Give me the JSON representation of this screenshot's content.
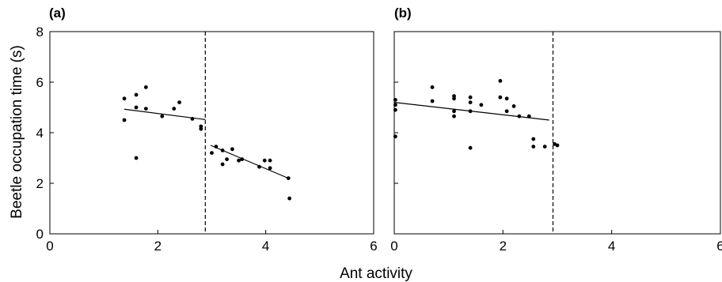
{
  "figure": {
    "shared_xlabel": "Ant activity",
    "shared_ylabel": "Beetle occupation time (s)"
  },
  "chart_data": [
    {
      "type": "scatter",
      "panel_label": "(a)",
      "xlim": [
        0,
        6
      ],
      "ylim": [
        0,
        8
      ],
      "xticks": [
        0,
        2,
        4,
        6
      ],
      "yticks": [
        0,
        2,
        4,
        6,
        8
      ],
      "show_y_tick_labels": true,
      "grid": false,
      "threshold_x": 2.88,
      "points": [
        {
          "x": 1.38,
          "y": 5.35
        },
        {
          "x": 1.38,
          "y": 4.5
        },
        {
          "x": 1.6,
          "y": 5.5
        },
        {
          "x": 1.6,
          "y": 5.0
        },
        {
          "x": 1.6,
          "y": 3.0
        },
        {
          "x": 1.78,
          "y": 5.8
        },
        {
          "x": 1.78,
          "y": 4.95
        },
        {
          "x": 2.08,
          "y": 4.65
        },
        {
          "x": 2.3,
          "y": 4.95
        },
        {
          "x": 2.4,
          "y": 5.2
        },
        {
          "x": 2.64,
          "y": 4.55
        },
        {
          "x": 2.8,
          "y": 4.25
        },
        {
          "x": 2.8,
          "y": 4.15
        },
        {
          "x": 3.0,
          "y": 3.2
        },
        {
          "x": 3.08,
          "y": 3.45
        },
        {
          "x": 3.2,
          "y": 3.3
        },
        {
          "x": 3.2,
          "y": 2.75
        },
        {
          "x": 3.28,
          "y": 2.95
        },
        {
          "x": 3.38,
          "y": 3.35
        },
        {
          "x": 3.5,
          "y": 2.9
        },
        {
          "x": 3.56,
          "y": 2.95
        },
        {
          "x": 3.88,
          "y": 2.65
        },
        {
          "x": 3.98,
          "y": 2.9
        },
        {
          "x": 4.08,
          "y": 2.6
        },
        {
          "x": 4.08,
          "y": 2.9
        },
        {
          "x": 4.42,
          "y": 2.2
        },
        {
          "x": 4.44,
          "y": 1.4
        }
      ],
      "fit_lines": [
        {
          "x": [
            1.38,
            2.88
          ],
          "y": [
            4.93,
            4.52
          ]
        },
        {
          "x": [
            2.98,
            4.44
          ],
          "y": [
            3.5,
            2.18
          ]
        }
      ]
    },
    {
      "type": "scatter",
      "panel_label": "(b)",
      "xlim": [
        0,
        6
      ],
      "ylim": [
        0,
        8
      ],
      "xticks": [
        0,
        2,
        4,
        6
      ],
      "yticks": [
        0,
        2,
        4,
        6,
        8
      ],
      "show_y_tick_labels": false,
      "grid": false,
      "threshold_x": 2.92,
      "points": [
        {
          "x": 0.02,
          "y": 5.3
        },
        {
          "x": 0.02,
          "y": 5.1
        },
        {
          "x": 0.02,
          "y": 4.9
        },
        {
          "x": 0.02,
          "y": 3.85
        },
        {
          "x": 0.7,
          "y": 5.8
        },
        {
          "x": 0.7,
          "y": 5.25
        },
        {
          "x": 1.1,
          "y": 5.45
        },
        {
          "x": 1.1,
          "y": 5.35
        },
        {
          "x": 1.1,
          "y": 4.85
        },
        {
          "x": 1.1,
          "y": 4.65
        },
        {
          "x": 1.4,
          "y": 5.4
        },
        {
          "x": 1.4,
          "y": 5.2
        },
        {
          "x": 1.4,
          "y": 4.85
        },
        {
          "x": 1.4,
          "y": 3.4
        },
        {
          "x": 1.6,
          "y": 5.1
        },
        {
          "x": 1.95,
          "y": 6.05
        },
        {
          "x": 1.95,
          "y": 5.4
        },
        {
          "x": 2.07,
          "y": 5.35
        },
        {
          "x": 2.07,
          "y": 4.85
        },
        {
          "x": 2.2,
          "y": 5.05
        },
        {
          "x": 2.3,
          "y": 4.65
        },
        {
          "x": 2.48,
          "y": 4.65
        },
        {
          "x": 2.56,
          "y": 3.75
        },
        {
          "x": 2.56,
          "y": 3.45
        },
        {
          "x": 2.77,
          "y": 3.45
        },
        {
          "x": 2.95,
          "y": 3.55
        },
        {
          "x": 3.0,
          "y": 3.5
        }
      ],
      "fit_lines": [
        {
          "x": [
            0.0,
            2.85
          ],
          "y": [
            5.2,
            4.5
          ]
        }
      ]
    }
  ]
}
